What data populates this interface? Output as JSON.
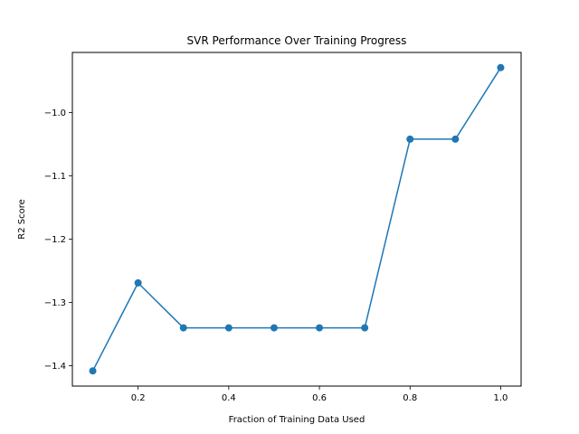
{
  "chart_data": {
    "type": "line",
    "title": "SVR Performance Over Training Progress",
    "xlabel": "Fraction of Training Data Used",
    "ylabel": "R2 Score",
    "x": [
      0.1,
      0.2,
      0.3,
      0.4,
      0.5,
      0.6,
      0.7,
      0.8,
      0.9,
      1.0
    ],
    "series": [
      {
        "values": [
          -1.408,
          -1.269,
          -1.34,
          -1.34,
          -1.34,
          -1.34,
          -1.34,
          -1.042,
          -1.042,
          -0.929
        ],
        "color": "#1f77b4",
        "marker": "circle"
      }
    ],
    "xlim": [
      0.055,
      1.045
    ],
    "ylim": [
      -1.432,
      -0.905
    ],
    "xticks": [
      {
        "value": 0.2,
        "label": "0.2"
      },
      {
        "value": 0.4,
        "label": "0.4"
      },
      {
        "value": 0.6,
        "label": "0.6"
      },
      {
        "value": 0.8,
        "label": "0.8"
      },
      {
        "value": 1.0,
        "label": "1.0"
      }
    ],
    "yticks": [
      {
        "value": -1.4,
        "label": "−1.4"
      },
      {
        "value": -1.3,
        "label": "−1.3"
      },
      {
        "value": -1.2,
        "label": "−1.2"
      },
      {
        "value": -1.1,
        "label": "−1.1"
      },
      {
        "value": -1.0,
        "label": "−1.0"
      }
    ],
    "grid": false,
    "legend": "none"
  }
}
